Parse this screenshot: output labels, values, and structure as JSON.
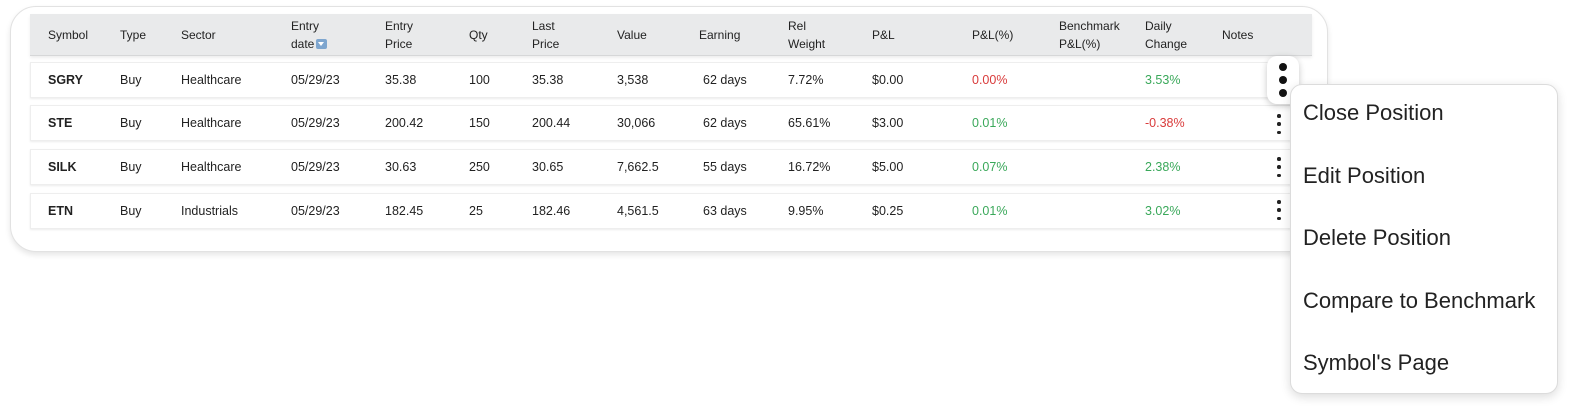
{
  "table": {
    "headers": {
      "symbol": "Symbol",
      "type": "Type",
      "sector": "Sector",
      "entry_date_l1": "Entry",
      "entry_date_l2": "date",
      "entry_price_l1": "Entry",
      "entry_price_l2": "Price",
      "qty": "Qty",
      "last_price_l1": "Last",
      "last_price_l2": "Price",
      "value": "Value",
      "earning": "Earning",
      "rel_weight_l1": "Rel",
      "rel_weight_l2": "Weight",
      "pnl": "P&L",
      "pnl_pct": "P&L(%)",
      "benchmark_l1": "Benchmark",
      "benchmark_l2": "P&L(%)",
      "daily_change_l1": "Daily",
      "daily_change_l2": "Change",
      "notes": "Notes"
    },
    "sort_icon": "sort-desc-icon",
    "rows": [
      {
        "symbol": "SGRY",
        "type": "Buy",
        "sector": "Healthcare",
        "entry_date": "05/29/23",
        "entry_price": "35.38",
        "qty": "100",
        "last_price": "35.38",
        "value": "3,538",
        "earning": "62 days",
        "rel_weight": "7.72%",
        "pnl": "$0.00",
        "pnl_pct": "0.00%",
        "pnl_pct_status": "negative",
        "benchmark": "",
        "daily_change": "3.53%",
        "daily_change_status": "positive",
        "notes": ""
      },
      {
        "symbol": "STE",
        "type": "Buy",
        "sector": "Healthcare",
        "entry_date": "05/29/23",
        "entry_price": "200.42",
        "qty": "150",
        "last_price": "200.44",
        "value": "30,066",
        "earning": "62 days",
        "rel_weight": "65.61%",
        "pnl": "$3.00",
        "pnl_pct": "0.01%",
        "pnl_pct_status": "positive",
        "benchmark": "",
        "daily_change": "-0.38%",
        "daily_change_status": "negative",
        "notes": ""
      },
      {
        "symbol": "SILK",
        "type": "Buy",
        "sector": "Healthcare",
        "entry_date": "05/29/23",
        "entry_price": "30.63",
        "qty": "250",
        "last_price": "30.65",
        "value": "7,662.5",
        "earning": "55 days",
        "rel_weight": "16.72%",
        "pnl": "$5.00",
        "pnl_pct": "0.07%",
        "pnl_pct_status": "positive",
        "benchmark": "",
        "daily_change": "2.38%",
        "daily_change_status": "positive",
        "notes": ""
      },
      {
        "symbol": "ETN",
        "type": "Buy",
        "sector": "Industrials",
        "entry_date": "05/29/23",
        "entry_price": "182.45",
        "qty": "25",
        "last_price": "182.46",
        "value": "4,561.5",
        "earning": "63 days",
        "rel_weight": "9.95%",
        "pnl": "$0.25",
        "pnl_pct": "0.01%",
        "pnl_pct_status": "positive",
        "benchmark": "",
        "daily_change": "3.02%",
        "daily_change_status": "positive",
        "notes": ""
      }
    ]
  },
  "row_actions_icon": "kebab-menu-icon",
  "context_menu": {
    "items": [
      {
        "label": "Close Position"
      },
      {
        "label": "Edit Position"
      },
      {
        "label": "Delete Position"
      },
      {
        "label": "Compare to Benchmark"
      },
      {
        "label": "Symbol's Page"
      }
    ]
  },
  "colors": {
    "positive": "#3aa85a",
    "negative": "#d93b3b",
    "header_bg": "#e9eaeb",
    "sort_icon": "#7ea6cf"
  }
}
